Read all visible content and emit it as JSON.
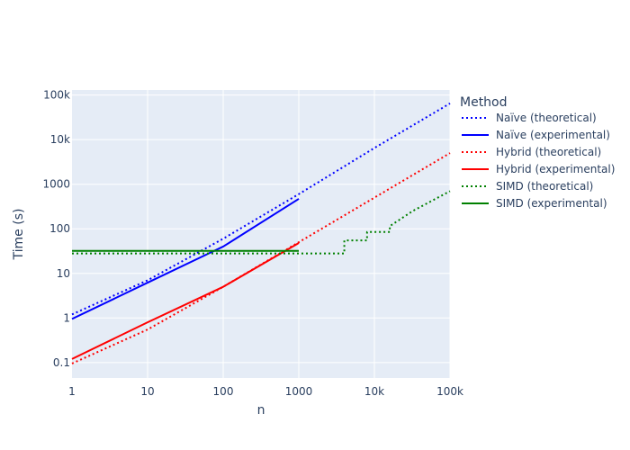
{
  "chart_data": {
    "type": "line",
    "title": "",
    "xlabel": "n",
    "ylabel": "Time (s)",
    "x_scale": "log",
    "y_scale": "log",
    "xlim": [
      1,
      100000
    ],
    "ylim": [
      0.045,
      130000
    ],
    "grid": true,
    "legend_title": "Method",
    "legend_position": "right",
    "x_ticks": [
      {
        "value": 1,
        "label": "1"
      },
      {
        "value": 10,
        "label": "10"
      },
      {
        "value": 100,
        "label": "100"
      },
      {
        "value": 1000,
        "label": "1000"
      },
      {
        "value": 10000,
        "label": "10k"
      },
      {
        "value": 100000,
        "label": "100k"
      }
    ],
    "y_ticks": [
      {
        "value": 0.1,
        "label": "0.1"
      },
      {
        "value": 1,
        "label": "1"
      },
      {
        "value": 10,
        "label": "10"
      },
      {
        "value": 100,
        "label": "100"
      },
      {
        "value": 1000,
        "label": "1000"
      },
      {
        "value": 10000,
        "label": "10k"
      },
      {
        "value": 100000,
        "label": "100k"
      }
    ],
    "series": [
      {
        "name": "Naïve (theoretical)",
        "color": "#0000ff",
        "dash": "dot",
        "x": [
          1,
          10,
          100,
          1000,
          10000,
          100000
        ],
        "y": [
          1.2,
          7,
          60,
          600,
          6500,
          65000
        ]
      },
      {
        "name": "Naïve (experimental)",
        "color": "#0000ff",
        "dash": "solid",
        "x": [
          1,
          10,
          70,
          100,
          1000
        ],
        "y": [
          0.95,
          6.2,
          30,
          40,
          470
        ]
      },
      {
        "name": "Hybrid (theoretical)",
        "color": "#ff0000",
        "dash": "dot",
        "x": [
          1,
          10,
          100,
          1000,
          10000,
          100000
        ],
        "y": [
          0.095,
          0.55,
          5,
          50,
          500,
          5000
        ]
      },
      {
        "name": "Hybrid (experimental)",
        "color": "#ff0000",
        "dash": "solid",
        "x": [
          1,
          10,
          100,
          1000
        ],
        "y": [
          0.12,
          0.8,
          5,
          48
        ]
      },
      {
        "name": "SIMD (theoretical)",
        "color": "#008000",
        "dash": "dot",
        "x": [
          1,
          4000,
          4000,
          8000,
          8000,
          16000,
          16000,
          32000,
          100000
        ],
        "y": [
          28,
          28,
          55,
          55,
          85,
          85,
          115,
          250,
          700
        ]
      },
      {
        "name": "SIMD (experimental)",
        "color": "#008000",
        "dash": "solid",
        "x": [
          1,
          1000
        ],
        "y": [
          32,
          32
        ]
      }
    ]
  }
}
